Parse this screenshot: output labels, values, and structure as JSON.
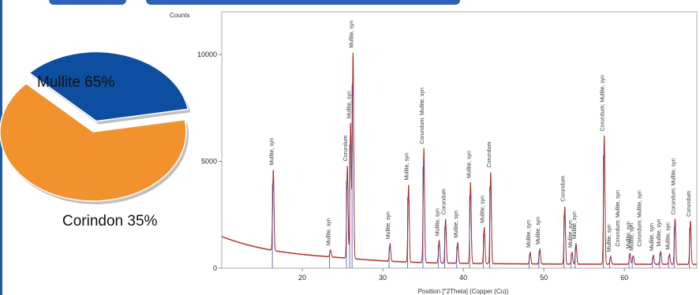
{
  "chart_data": [
    {
      "type": "pie",
      "slices": [
        {
          "label": "Mullite 65%",
          "value": 65,
          "color": "#f2922f"
        },
        {
          "label": "Corindon 35%",
          "value": 35,
          "color": "#0d4ea0"
        }
      ]
    },
    {
      "type": "line",
      "ylabel": "Counts",
      "xlabel": "Position [°2Theta] (Copper (Cu))",
      "xlim": [
        10,
        69
      ],
      "ylim": [
        0,
        12000
      ],
      "x_ticks": [
        20,
        30,
        40,
        50,
        60
      ],
      "y_ticks": [
        0,
        5000,
        10000
      ],
      "series": [
        {
          "color": "#b02020",
          "peaks": [
            {
              "x": 16.4,
              "y": 4600
            },
            {
              "x": 23.5,
              "y": 850
            },
            {
              "x": 25.6,
              "y": 4800
            },
            {
              "x": 26.0,
              "y": 6800
            },
            {
              "x": 26.3,
              "y": 10100
            },
            {
              "x": 30.9,
              "y": 1150
            },
            {
              "x": 33.2,
              "y": 3900
            },
            {
              "x": 35.1,
              "y": 5600
            },
            {
              "x": 37.0,
              "y": 1300
            },
            {
              "x": 37.8,
              "y": 2300
            },
            {
              "x": 39.3,
              "y": 1200
            },
            {
              "x": 40.9,
              "y": 4000
            },
            {
              "x": 42.6,
              "y": 1900
            },
            {
              "x": 43.4,
              "y": 4500
            },
            {
              "x": 48.3,
              "y": 750
            },
            {
              "x": 49.5,
              "y": 900
            },
            {
              "x": 52.6,
              "y": 2900
            },
            {
              "x": 53.5,
              "y": 750
            },
            {
              "x": 54.0,
              "y": 1150
            },
            {
              "x": 57.5,
              "y": 6200
            },
            {
              "x": 58.3,
              "y": 550
            },
            {
              "x": 60.7,
              "y": 700
            },
            {
              "x": 61.1,
              "y": 600
            },
            {
              "x": 63.6,
              "y": 600
            },
            {
              "x": 64.5,
              "y": 800
            },
            {
              "x": 65.6,
              "y": 650
            },
            {
              "x": 66.3,
              "y": 2300
            },
            {
              "x": 68.2,
              "y": 2200
            }
          ]
        }
      ],
      "peak_labels": [
        {
          "x": 16.4,
          "y": 4700,
          "text": "Mullite, syn"
        },
        {
          "x": 23.5,
          "y": 950,
          "text": "Mullite, syn"
        },
        {
          "x": 25.6,
          "y": 4900,
          "text": "Corundum"
        },
        {
          "x": 26.0,
          "y": 6900,
          "text": "Mullite, syn"
        },
        {
          "x": 26.3,
          "y": 10200,
          "text": "Mullite, syn"
        },
        {
          "x": 30.9,
          "y": 1250,
          "text": "Mullite, syn"
        },
        {
          "x": 33.2,
          "y": 4000,
          "text": "Mullite, syn"
        },
        {
          "x": 35.1,
          "y": 5700,
          "text": "Corundum; Mullite, syn"
        },
        {
          "x": 37.0,
          "y": 1400,
          "text": "Mullite, syn"
        },
        {
          "x": 37.8,
          "y": 2400,
          "text": "Corundum"
        },
        {
          "x": 39.3,
          "y": 1300,
          "text": "Mullite, syn"
        },
        {
          "x": 40.9,
          "y": 4100,
          "text": "Mullite, syn"
        },
        {
          "x": 42.6,
          "y": 2000,
          "text": "Mullite, syn"
        },
        {
          "x": 43.4,
          "y": 4600,
          "text": "Corundum"
        },
        {
          "x": 48.3,
          "y": 850,
          "text": "Mullite, syn"
        },
        {
          "x": 49.5,
          "y": 1000,
          "text": "Mullite, syn"
        },
        {
          "x": 52.6,
          "y": 3000,
          "text": "Corundum"
        },
        {
          "x": 53.5,
          "y": 850,
          "text": "Mullite, syn"
        },
        {
          "x": 54.0,
          "y": 1250,
          "text": "Mullite, syn"
        },
        {
          "x": 57.5,
          "y": 6300,
          "text": "Corundum; Mullite, syn"
        },
        {
          "x": 58.3,
          "y": 650,
          "text": "Mullite, syn"
        },
        {
          "x": 59.4,
          "y": 900,
          "text": "Corundum; Mullite, syn"
        },
        {
          "x": 60.7,
          "y": 800,
          "text": "Mullite, syn"
        },
        {
          "x": 61.1,
          "y": 700,
          "text": "Mullite, syn"
        },
        {
          "x": 62.1,
          "y": 900,
          "text": "Corundum; Mullite, syn"
        },
        {
          "x": 63.6,
          "y": 700,
          "text": "Mullite, syn"
        },
        {
          "x": 64.5,
          "y": 900,
          "text": "Mullite, syn"
        },
        {
          "x": 65.6,
          "y": 750,
          "text": "Mullite, syn"
        },
        {
          "x": 66.3,
          "y": 2400,
          "text": "Corundum; Mullite, syn"
        },
        {
          "x": 68.2,
          "y": 2300,
          "text": "Corundum"
        }
      ]
    }
  ]
}
